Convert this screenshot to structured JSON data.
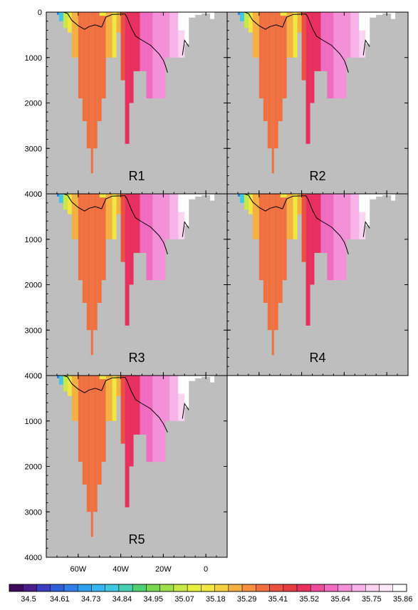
{
  "chart_data": {
    "type": "heatmap",
    "x_axis": {
      "range": [
        -75,
        10
      ],
      "ticks": [
        -60,
        -40,
        -20,
        0
      ],
      "tick_labels": [
        "60W",
        "40W",
        "20W",
        "0"
      ]
    },
    "y_axis": {
      "range": [
        0,
        4000
      ],
      "inverted": true,
      "ticks": [
        0,
        1000,
        2000,
        3000,
        4000
      ],
      "tick_labels": [
        "0",
        "1000",
        "2000",
        "3000",
        "4000"
      ]
    },
    "background_color": "#bebebe",
    "panels": [
      {
        "label": "R1",
        "contour": [
          [
            -67,
            0
          ],
          [
            -65,
            30
          ],
          [
            -63,
            180
          ],
          [
            -60,
            300
          ],
          [
            -57,
            380
          ],
          [
            -55,
            320
          ],
          [
            -52,
            280
          ],
          [
            -49,
            330
          ],
          [
            -47,
            110
          ],
          [
            -44,
            50
          ],
          [
            -38,
            40
          ],
          [
            -37,
            120
          ],
          [
            -35,
            350
          ],
          [
            -33,
            530
          ],
          [
            -30,
            620
          ],
          [
            -26,
            730
          ],
          [
            -22,
            920
          ],
          [
            -20,
            1060
          ],
          [
            -19,
            1180
          ],
          [
            -18,
            1330
          ]
        ],
        "contour2": [
          [
            -11,
            950
          ],
          [
            -10,
            620
          ],
          [
            -8,
            760
          ]
        ]
      },
      {
        "label": "R2",
        "contour": [
          [
            -67,
            0
          ],
          [
            -65,
            30
          ],
          [
            -63,
            180
          ],
          [
            -60,
            300
          ],
          [
            -57,
            380
          ],
          [
            -55,
            320
          ],
          [
            -52,
            280
          ],
          [
            -49,
            330
          ],
          [
            -47,
            110
          ],
          [
            -44,
            50
          ],
          [
            -38,
            40
          ],
          [
            -37,
            120
          ],
          [
            -35,
            350
          ],
          [
            -33,
            530
          ],
          [
            -30,
            620
          ],
          [
            -26,
            730
          ],
          [
            -22,
            920
          ],
          [
            -20,
            1060
          ],
          [
            -19,
            1180
          ],
          [
            -18,
            1330
          ]
        ],
        "contour2": [
          [
            -11,
            950
          ],
          [
            -10,
            620
          ],
          [
            -8,
            760
          ]
        ]
      },
      {
        "label": "R3",
        "contour": [
          [
            -67,
            0
          ],
          [
            -65,
            30
          ],
          [
            -63,
            180
          ],
          [
            -60,
            300
          ],
          [
            -57,
            380
          ],
          [
            -55,
            320
          ],
          [
            -52,
            280
          ],
          [
            -49,
            330
          ],
          [
            -47,
            110
          ],
          [
            -44,
            50
          ],
          [
            -38,
            40
          ],
          [
            -37,
            120
          ],
          [
            -35,
            350
          ],
          [
            -33,
            530
          ],
          [
            -30,
            620
          ],
          [
            -26,
            730
          ],
          [
            -22,
            920
          ],
          [
            -20,
            1060
          ],
          [
            -19,
            1180
          ],
          [
            -18,
            1330
          ]
        ],
        "contour2": [
          [
            -11,
            950
          ],
          [
            -10,
            620
          ],
          [
            -8,
            760
          ]
        ]
      },
      {
        "label": "R4",
        "contour": [
          [
            -67,
            0
          ],
          [
            -65,
            30
          ],
          [
            -63,
            180
          ],
          [
            -60,
            300
          ],
          [
            -57,
            380
          ],
          [
            -55,
            320
          ],
          [
            -52,
            280
          ],
          [
            -49,
            330
          ],
          [
            -47,
            110
          ],
          [
            -44,
            50
          ],
          [
            -38,
            40
          ],
          [
            -37,
            120
          ],
          [
            -35,
            350
          ],
          [
            -33,
            530
          ],
          [
            -30,
            620
          ],
          [
            -26,
            730
          ],
          [
            -22,
            920
          ],
          [
            -20,
            1060
          ],
          [
            -19,
            1180
          ],
          [
            -18,
            1330
          ]
        ],
        "contour2": [
          [
            -11,
            950
          ],
          [
            -10,
            620
          ],
          [
            -8,
            760
          ]
        ]
      },
      {
        "label": "R5",
        "contour": [
          [
            -67,
            0
          ],
          [
            -65,
            30
          ],
          [
            -63,
            180
          ],
          [
            -60,
            300
          ],
          [
            -57,
            380
          ],
          [
            -55,
            320
          ],
          [
            -52,
            280
          ],
          [
            -49,
            330
          ],
          [
            -47,
            110
          ],
          [
            -44,
            50
          ],
          [
            -38,
            40
          ],
          [
            -37,
            120
          ],
          [
            -35,
            350
          ],
          [
            -33,
            530
          ],
          [
            -30,
            620
          ],
          [
            -26,
            730
          ],
          [
            -22,
            920
          ],
          [
            -20,
            1060
          ],
          [
            -19,
            1150
          ],
          [
            -18,
            1250
          ]
        ],
        "contour2": [
          [
            -11,
            950
          ],
          [
            -10,
            620
          ],
          [
            -8,
            760
          ]
        ]
      }
    ],
    "columns": [
      {
        "x0": -69,
        "x1": -67,
        "depth": 200,
        "value": 34.84
      },
      {
        "x0": -67,
        "x1": -65,
        "depth": 350,
        "value": 35.07
      },
      {
        "x0": -65,
        "x1": -63,
        "depth": 450,
        "value": 35.18
      },
      {
        "x0": -63,
        "x1": -60,
        "depth": 1000,
        "value": 35.29
      },
      {
        "x0": -60,
        "x1": -58,
        "depth": 1900,
        "value": 35.35
      },
      {
        "x0": -58,
        "x1": -56,
        "depth": 2400,
        "value": 35.35
      },
      {
        "x0": -56,
        "x1": -54,
        "depth": 3000,
        "value": 35.35
      },
      {
        "x0": -54,
        "x1": -53,
        "depth": 3550,
        "value": 35.35
      },
      {
        "x0": -53,
        "x1": -51,
        "depth": 3000,
        "value": 35.35
      },
      {
        "x0": -51,
        "x1": -49,
        "depth": 2400,
        "value": 35.35
      },
      {
        "x0": -49,
        "x1": -47,
        "depth": 1900,
        "value": 35.35
      },
      {
        "x0": -47,
        "x1": -44,
        "depth": 1000,
        "value": 35.29
      },
      {
        "x0": -44,
        "x1": -42,
        "depth": 1000,
        "value": 35.18
      },
      {
        "x0": -42,
        "x1": -40,
        "depth": 450,
        "value": 35.29
      },
      {
        "x0": -40,
        "x1": -38,
        "depth": 1500,
        "value": 35.41
      },
      {
        "x0": -38,
        "x1": -36,
        "depth": 2900,
        "value": 35.52
      },
      {
        "x0": -36,
        "x1": -34,
        "depth": 2000,
        "value": 35.52
      },
      {
        "x0": -34,
        "x1": -31,
        "depth": 1300,
        "value": 35.52
      },
      {
        "x0": -31,
        "x1": -28,
        "depth": 1300,
        "value": 35.58
      },
      {
        "x0": -28,
        "x1": -25,
        "depth": 1900,
        "value": 35.58
      },
      {
        "x0": -25,
        "x1": -22,
        "depth": 1900,
        "value": 35.64
      },
      {
        "x0": -22,
        "x1": -19,
        "depth": 1900,
        "value": 35.64
      },
      {
        "x0": -19,
        "x1": -17,
        "depth": 1000,
        "value": 35.64
      },
      {
        "x0": -17,
        "x1": -13,
        "depth": 1000,
        "value": 35.69
      },
      {
        "x0": -13,
        "x1": -10,
        "depth": 1000,
        "value": 35.75
      },
      {
        "x0": -10,
        "x1": -8,
        "depth": 700,
        "value": 35.86
      },
      {
        "x0": -8,
        "x1": -5,
        "depth": 120,
        "value": 35.92
      },
      {
        "x0": -5,
        "x1": -2,
        "depth": 60,
        "value": 35.92
      },
      {
        "x0": 2,
        "x1": 4,
        "depth": 150,
        "value": 35.92
      }
    ],
    "colorbar": {
      "labels": [
        "34.5",
        "34.61",
        "34.73",
        "34.84",
        "34.95",
        "35.07",
        "35.18",
        "35.29",
        "35.41",
        "35.52",
        "35.64",
        "35.75",
        "35.86"
      ],
      "colors": [
        "#3d0a5e",
        "#4a1d8c",
        "#3b3fbf",
        "#2f5fd6",
        "#2f7fe6",
        "#2f9ff0",
        "#35b7f2",
        "#40c8e0",
        "#48d0b0",
        "#50d070",
        "#7ad850",
        "#a0e04a",
        "#c8e848",
        "#e8f040",
        "#f0e840",
        "#f4d040",
        "#f4b040",
        "#f49040",
        "#f07040",
        "#ec5040",
        "#e83c44",
        "#e83060",
        "#ec4c98",
        "#f06cc0",
        "#f490d8",
        "#f8b4e8",
        "#fad4f0",
        "#fce8f6",
        "#ffffff"
      ]
    }
  }
}
